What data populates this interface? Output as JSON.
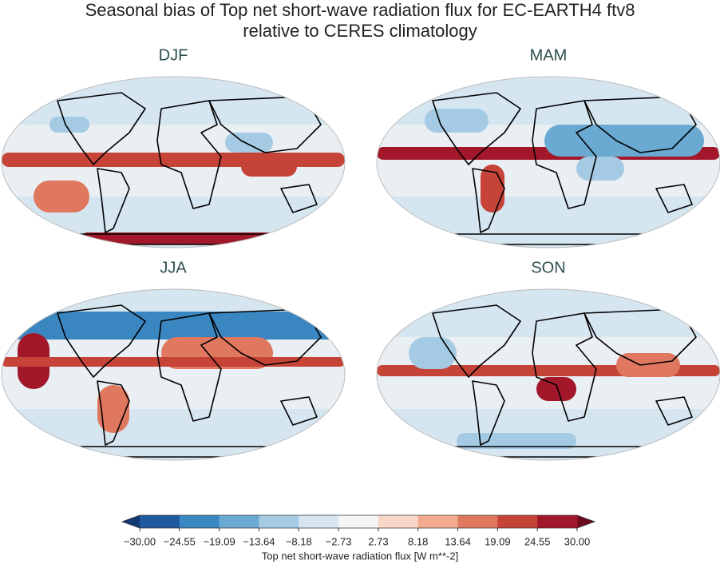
{
  "title": "Seasonal bias of Top net short-wave radiation flux for EC-EARTH4 ftv8",
  "subtitle": "relative to CERES climatology",
  "panels": [
    {
      "title": "DJF"
    },
    {
      "title": "MAM"
    },
    {
      "title": "JJA"
    },
    {
      "title": "SON"
    }
  ],
  "colorbar": {
    "label": "Top net short-wave radiation flux [W m**-2]",
    "ticks": [
      {
        "value": -30,
        "label": "−30.00"
      },
      {
        "value": -24.55,
        "label": "−24.55"
      },
      {
        "value": -19.09,
        "label": "−19.09"
      },
      {
        "value": -13.64,
        "label": "−13.64"
      },
      {
        "value": -8.18,
        "label": "−8.18"
      },
      {
        "value": -2.73,
        "label": "−2.73"
      },
      2.73,
      8.18,
      13.64,
      19.09,
      24.55,
      {
        "value": 30,
        "label": "30.00"
      }
    ],
    "colors": [
      "#0f3a73",
      "#1f5a9e",
      "#3a86c0",
      "#6aa9d1",
      "#a4cbe3",
      "#d6e6f1",
      "#f5f5f5",
      "#f9d6c5",
      "#f2ab8d",
      "#e0775f",
      "#c64338",
      "#a2172a",
      "#6b0a1f"
    ]
  }
}
